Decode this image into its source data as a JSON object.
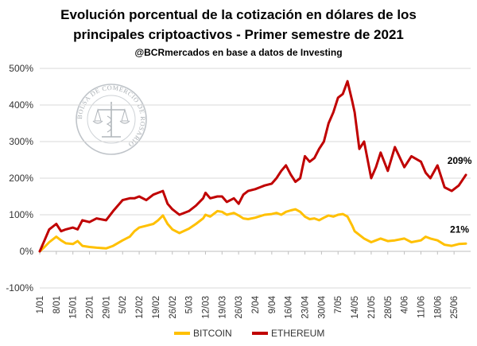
{
  "chart_data": {
    "type": "line",
    "title_line1": "Evolución porcentual de la cotización en dólares de los",
    "title_line2": "principales criptoactivos - Primer semestre de 2021",
    "subtitle": "@BCRmercados en base a datos de Investing",
    "logo_text": "BOLSA DE COMERCIO DE ROSARIO",
    "x_tick_labels": [
      "1/01",
      "8/01",
      "15/01",
      "22/01",
      "29/01",
      "5/02",
      "12/02",
      "19/02",
      "26/02",
      "5/03",
      "12/03",
      "19/03",
      "26/03",
      "2/04",
      "9/04",
      "16/04",
      "23/04",
      "30/04",
      "7/05",
      "14/05",
      "21/05",
      "28/05",
      "4/06",
      "11/06",
      "18/06",
      "25/06"
    ],
    "x_tick_days": [
      0,
      7,
      14,
      21,
      28,
      35,
      42,
      49,
      56,
      63,
      70,
      77,
      84,
      91,
      98,
      105,
      112,
      119,
      126,
      133,
      140,
      147,
      154,
      161,
      168,
      175
    ],
    "ylim": [
      -100,
      500
    ],
    "y_ticks": [
      -100,
      0,
      100,
      200,
      300,
      400,
      500
    ],
    "y_tick_labels": [
      "-100%",
      "0%",
      "100%",
      "200%",
      "300%",
      "400%",
      "500%"
    ],
    "grid": "horizontal",
    "legend_position": "bottom",
    "series": [
      {
        "name": "BITCOIN",
        "color": "#FFC000",
        "end_label": "21%",
        "x": [
          0,
          2,
          4,
          7,
          9,
          11,
          14,
          16,
          18,
          21,
          24,
          28,
          31,
          35,
          38,
          40,
          42,
          45,
          48,
          50,
          52,
          54,
          56,
          59,
          63,
          66,
          69,
          70,
          72,
          75,
          77,
          79,
          82,
          84,
          86,
          88,
          91,
          93,
          95,
          98,
          100,
          102,
          104,
          106,
          108,
          110,
          112,
          114,
          116,
          118,
          120,
          122,
          124,
          126,
          128,
          130,
          132,
          133,
          135,
          137,
          140,
          142,
          144,
          147,
          150,
          154,
          157,
          161,
          163,
          165,
          168,
          171,
          174,
          177,
          180
        ],
        "y": [
          0,
          12,
          25,
          40,
          30,
          22,
          20,
          28,
          15,
          12,
          10,
          8,
          15,
          30,
          40,
          55,
          65,
          70,
          75,
          85,
          98,
          75,
          60,
          50,
          62,
          75,
          90,
          100,
          95,
          110,
          108,
          100,
          105,
          98,
          90,
          88,
          92,
          96,
          100,
          102,
          105,
          100,
          108,
          112,
          115,
          108,
          95,
          88,
          90,
          85,
          92,
          98,
          95,
          100,
          102,
          95,
          70,
          55,
          45,
          35,
          25,
          30,
          35,
          28,
          30,
          35,
          25,
          30,
          40,
          35,
          30,
          18,
          15,
          20,
          21
        ]
      },
      {
        "name": "ETHEREUM",
        "color": "#C00000",
        "end_label": "209%",
        "x": [
          0,
          2,
          4,
          7,
          9,
          11,
          14,
          16,
          18,
          21,
          24,
          28,
          31,
          35,
          38,
          40,
          42,
          45,
          48,
          50,
          52,
          54,
          56,
          59,
          63,
          66,
          69,
          70,
          72,
          75,
          77,
          79,
          82,
          84,
          86,
          88,
          91,
          93,
          95,
          98,
          100,
          102,
          104,
          106,
          108,
          110,
          112,
          114,
          116,
          118,
          120,
          122,
          124,
          126,
          128,
          130,
          132,
          133,
          135,
          137,
          140,
          142,
          144,
          147,
          150,
          154,
          157,
          161,
          163,
          165,
          168,
          171,
          174,
          177,
          180
        ],
        "y": [
          0,
          30,
          60,
          75,
          55,
          60,
          65,
          60,
          85,
          80,
          90,
          85,
          110,
          140,
          145,
          145,
          150,
          140,
          155,
          160,
          165,
          130,
          115,
          100,
          110,
          125,
          145,
          160,
          145,
          150,
          150,
          135,
          145,
          130,
          155,
          165,
          170,
          175,
          180,
          185,
          200,
          220,
          235,
          210,
          190,
          200,
          260,
          245,
          255,
          280,
          300,
          350,
          380,
          420,
          430,
          465,
          410,
          380,
          280,
          300,
          200,
          230,
          270,
          220,
          285,
          230,
          260,
          245,
          215,
          200,
          235,
          175,
          165,
          180,
          209
        ]
      }
    ]
  }
}
